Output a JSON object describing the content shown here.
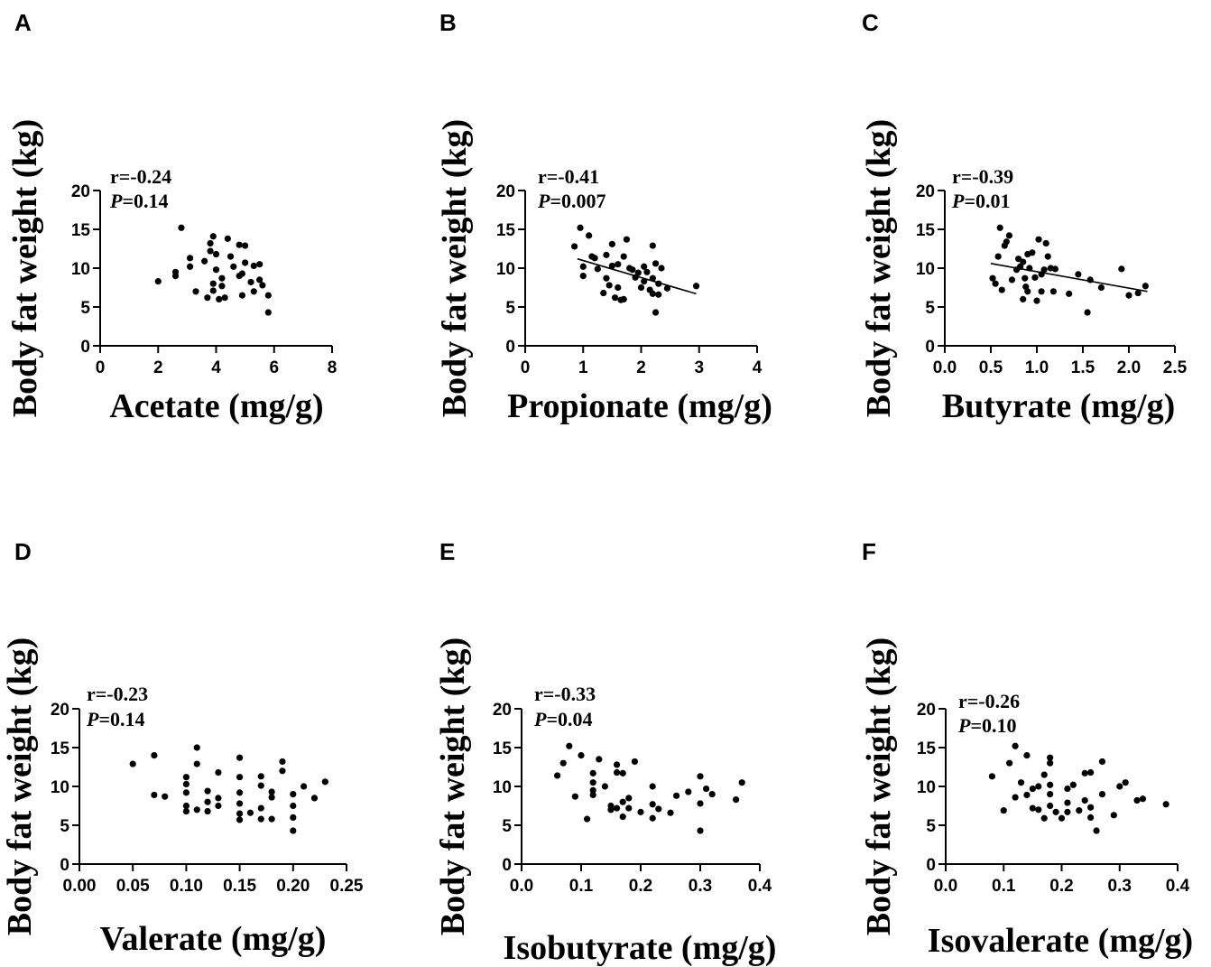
{
  "chart_data": [
    {
      "id": "A",
      "type": "scatter",
      "panel_label": "A",
      "title": "",
      "xlabel": "Acetate (mg/g)",
      "ylabel": "Body fat weight (kg)",
      "xlim": [
        0,
        8
      ],
      "ylim": [
        0,
        20
      ],
      "xticks": [
        0,
        2,
        4,
        6,
        8
      ],
      "xtick_labels": [
        "0",
        "2",
        "4",
        "6",
        "8"
      ],
      "yticks": [
        0,
        5,
        10,
        15,
        20
      ],
      "ytick_labels": [
        "0",
        "5",
        "10",
        "15",
        "20"
      ],
      "stats": {
        "r": "r=-0.24",
        "p_prefix": "P",
        "p_value": "=0.14"
      },
      "fit_line": null,
      "points": [
        [
          2.0,
          8.3
        ],
        [
          2.6,
          9.0
        ],
        [
          2.6,
          9.5
        ],
        [
          2.8,
          15.2
        ],
        [
          3.1,
          11.3
        ],
        [
          3.1,
          10.2
        ],
        [
          3.3,
          7.0
        ],
        [
          3.6,
          10.9
        ],
        [
          3.7,
          6.2
        ],
        [
          3.8,
          13.2
        ],
        [
          3.8,
          12.2
        ],
        [
          3.9,
          14.1
        ],
        [
          3.9,
          8.0
        ],
        [
          3.9,
          7.1
        ],
        [
          4.0,
          11.8
        ],
        [
          4.0,
          9.8
        ],
        [
          4.1,
          6.0
        ],
        [
          4.2,
          8.7
        ],
        [
          4.3,
          6.2
        ],
        [
          4.2,
          7.7
        ],
        [
          4.4,
          13.8
        ],
        [
          4.5,
          11.5
        ],
        [
          4.6,
          10.2
        ],
        [
          4.8,
          9.0
        ],
        [
          4.8,
          13.0
        ],
        [
          4.9,
          9.3
        ],
        [
          4.9,
          6.5
        ],
        [
          5.0,
          12.9
        ],
        [
          5.0,
          10.7
        ],
        [
          5.2,
          8.2
        ],
        [
          5.3,
          7.0
        ],
        [
          5.3,
          10.3
        ],
        [
          5.5,
          10.5
        ],
        [
          5.5,
          8.5
        ],
        [
          5.6,
          7.8
        ],
        [
          5.8,
          6.5
        ],
        [
          5.8,
          4.3
        ]
      ]
    },
    {
      "id": "B",
      "type": "scatter",
      "panel_label": "B",
      "title": "",
      "xlabel": "Propionate (mg/g)",
      "ylabel": "Body fat weight (kg)",
      "xlim": [
        0,
        4
      ],
      "ylim": [
        0,
        20
      ],
      "xticks": [
        0,
        1,
        2,
        3,
        4
      ],
      "xtick_labels": [
        "0",
        "1",
        "2",
        "3",
        "4"
      ],
      "yticks": [
        0,
        5,
        10,
        15,
        20
      ],
      "ytick_labels": [
        "0",
        "5",
        "10",
        "15",
        "20"
      ],
      "stats": {
        "r": "r=-0.41",
        "p_prefix": "P",
        "p_value": "=0.007"
      },
      "fit_line": [
        [
          0.9,
          11.2
        ],
        [
          2.95,
          6.7
        ]
      ],
      "points": [
        [
          0.85,
          12.8
        ],
        [
          0.95,
          15.2
        ],
        [
          1.0,
          10.2
        ],
        [
          1.0,
          9.0
        ],
        [
          1.1,
          14.2
        ],
        [
          1.15,
          11.5
        ],
        [
          1.2,
          11.3
        ],
        [
          1.25,
          9.9
        ],
        [
          1.35,
          6.8
        ],
        [
          1.4,
          8.7
        ],
        [
          1.4,
          11.7
        ],
        [
          1.45,
          7.8
        ],
        [
          1.5,
          13.1
        ],
        [
          1.5,
          10.3
        ],
        [
          1.55,
          6.2
        ],
        [
          1.6,
          7.5
        ],
        [
          1.6,
          10.5
        ],
        [
          1.65,
          5.9
        ],
        [
          1.7,
          11.5
        ],
        [
          1.7,
          6.0
        ],
        [
          1.75,
          13.7
        ],
        [
          1.8,
          10.0
        ],
        [
          1.85,
          9.8
        ],
        [
          1.9,
          8.8
        ],
        [
          1.95,
          9.4
        ],
        [
          2.0,
          7.5
        ],
        [
          2.05,
          10.2
        ],
        [
          2.05,
          8.3
        ],
        [
          2.1,
          9.5
        ],
        [
          2.15,
          7.2
        ],
        [
          2.2,
          12.9
        ],
        [
          2.2,
          8.7
        ],
        [
          2.2,
          6.7
        ],
        [
          2.25,
          4.3
        ],
        [
          2.25,
          10.6
        ],
        [
          2.3,
          8.0
        ],
        [
          2.3,
          6.6
        ],
        [
          2.35,
          10.0
        ],
        [
          2.45,
          7.4
        ],
        [
          2.95,
          7.7
        ]
      ]
    },
    {
      "id": "C",
      "type": "scatter",
      "panel_label": "C",
      "title": "",
      "xlabel": "Butyrate  (mg/g)",
      "ylabel": "Body fat weight (kg)",
      "xlim": [
        0,
        2.5
      ],
      "ylim": [
        0,
        20
      ],
      "xticks": [
        0,
        0.5,
        1.0,
        1.5,
        2.0,
        2.5
      ],
      "xtick_labels": [
        "0.0",
        "0.5",
        "1.0",
        "1.5",
        "2.0",
        "2.5"
      ],
      "yticks": [
        0,
        5,
        10,
        15,
        20
      ],
      "ytick_labels": [
        "0",
        "5",
        "10",
        "15",
        "20"
      ],
      "stats": {
        "r": "r=-0.39",
        "p_prefix": "P",
        "p_value": "=0.01"
      },
      "fit_line": [
        [
          0.5,
          10.6
        ],
        [
          2.2,
          7.0
        ]
      ],
      "points": [
        [
          0.52,
          8.7
        ],
        [
          0.55,
          8.0
        ],
        [
          0.58,
          11.5
        ],
        [
          0.6,
          15.2
        ],
        [
          0.62,
          7.2
        ],
        [
          0.65,
          12.9
        ],
        [
          0.67,
          13.4
        ],
        [
          0.7,
          14.2
        ],
        [
          0.73,
          8.5
        ],
        [
          0.78,
          9.8
        ],
        [
          0.8,
          11.2
        ],
        [
          0.82,
          10.2
        ],
        [
          0.85,
          6.0
        ],
        [
          0.85,
          10.8
        ],
        [
          0.87,
          8.7
        ],
        [
          0.88,
          7.6
        ],
        [
          0.9,
          11.8
        ],
        [
          0.9,
          7.0
        ],
        [
          0.92,
          10.0
        ],
        [
          0.95,
          12.0
        ],
        [
          0.98,
          8.8
        ],
        [
          1.0,
          5.8
        ],
        [
          1.02,
          13.7
        ],
        [
          1.05,
          7.0
        ],
        [
          1.05,
          9.2
        ],
        [
          1.08,
          9.8
        ],
        [
          1.1,
          13.2
        ],
        [
          1.12,
          11.5
        ],
        [
          1.15,
          10.0
        ],
        [
          1.18,
          7.0
        ],
        [
          1.2,
          9.9
        ],
        [
          1.35,
          6.7
        ],
        [
          1.45,
          9.2
        ],
        [
          1.55,
          4.3
        ],
        [
          1.58,
          8.5
        ],
        [
          1.7,
          7.5
        ],
        [
          1.92,
          9.9
        ],
        [
          2.0,
          6.5
        ],
        [
          2.1,
          6.8
        ],
        [
          2.18,
          7.7
        ]
      ]
    },
    {
      "id": "D",
      "type": "scatter",
      "panel_label": "D",
      "title": "",
      "xlabel": "Valerate (mg/g)",
      "ylabel": "Body fat weight (kg)",
      "xlim": [
        0,
        0.25
      ],
      "ylim": [
        0,
        20
      ],
      "xticks": [
        0,
        0.05,
        0.1,
        0.15,
        0.2,
        0.25
      ],
      "xtick_labels": [
        "0.00",
        "0.05",
        "0.10",
        "0.15",
        "0.20",
        "0.25"
      ],
      "yticks": [
        0,
        5,
        10,
        15,
        20
      ],
      "ytick_labels": [
        "0",
        "5",
        "10",
        "15",
        "20"
      ],
      "stats": {
        "r": "r=-0.23",
        "p_prefix": "P",
        "p_value": "=0.14"
      },
      "fit_line": null,
      "points": [
        [
          0.05,
          12.9
        ],
        [
          0.07,
          14.0
        ],
        [
          0.07,
          8.9
        ],
        [
          0.08,
          8.7
        ],
        [
          0.1,
          11.2
        ],
        [
          0.1,
          10.3
        ],
        [
          0.1,
          9.2
        ],
        [
          0.1,
          7.5
        ],
        [
          0.1,
          6.8
        ],
        [
          0.11,
          15.0
        ],
        [
          0.11,
          12.9
        ],
        [
          0.11,
          7.0
        ],
        [
          0.12,
          9.4
        ],
        [
          0.12,
          8.0
        ],
        [
          0.12,
          6.8
        ],
        [
          0.13,
          11.8
        ],
        [
          0.13,
          8.5
        ],
        [
          0.13,
          7.5
        ],
        [
          0.15,
          13.7
        ],
        [
          0.15,
          11.2
        ],
        [
          0.15,
          9.2
        ],
        [
          0.15,
          7.8
        ],
        [
          0.15,
          6.5
        ],
        [
          0.15,
          5.7
        ],
        [
          0.16,
          6.6
        ],
        [
          0.17,
          11.3
        ],
        [
          0.17,
          10.1
        ],
        [
          0.17,
          7.2
        ],
        [
          0.17,
          5.8
        ],
        [
          0.18,
          9.3
        ],
        [
          0.18,
          8.6
        ],
        [
          0.18,
          5.8
        ],
        [
          0.19,
          13.2
        ],
        [
          0.19,
          12.0
        ],
        [
          0.2,
          9.0
        ],
        [
          0.2,
          7.5
        ],
        [
          0.2,
          6.0
        ],
        [
          0.2,
          4.3
        ],
        [
          0.21,
          10.0
        ],
        [
          0.22,
          8.5
        ],
        [
          0.23,
          10.6
        ]
      ]
    },
    {
      "id": "E",
      "type": "scatter",
      "panel_label": "E",
      "title": "",
      "xlabel": "Isobutyrate  (mg/g)",
      "ylabel": "Body fat weight (kg)",
      "xlim": [
        0,
        0.4
      ],
      "ylim": [
        0,
        20
      ],
      "xticks": [
        0,
        0.1,
        0.2,
        0.3,
        0.4
      ],
      "xtick_labels": [
        "0.0",
        "0.1",
        "0.2",
        "0.3",
        "0.4"
      ],
      "yticks": [
        0,
        5,
        10,
        15,
        20
      ],
      "ytick_labels": [
        "0",
        "5",
        "10",
        "15",
        "20"
      ],
      "stats": {
        "r": "r=-0.33",
        "p_prefix": "P",
        "p_value": "=0.04"
      },
      "fit_line": null,
      "points": [
        [
          0.06,
          11.4
        ],
        [
          0.07,
          13.0
        ],
        [
          0.08,
          15.2
        ],
        [
          0.09,
          8.7
        ],
        [
          0.1,
          14.0
        ],
        [
          0.11,
          5.8
        ],
        [
          0.12,
          11.7
        ],
        [
          0.12,
          10.5
        ],
        [
          0.12,
          9.5
        ],
        [
          0.12,
          8.9
        ],
        [
          0.13,
          13.5
        ],
        [
          0.14,
          10.0
        ],
        [
          0.15,
          7.5
        ],
        [
          0.15,
          7.0
        ],
        [
          0.16,
          12.8
        ],
        [
          0.16,
          11.8
        ],
        [
          0.16,
          7.2
        ],
        [
          0.17,
          11.7
        ],
        [
          0.17,
          8.0
        ],
        [
          0.17,
          6.1
        ],
        [
          0.18,
          8.5
        ],
        [
          0.18,
          7.2
        ],
        [
          0.19,
          13.2
        ],
        [
          0.2,
          6.7
        ],
        [
          0.22,
          10.0
        ],
        [
          0.22,
          7.7
        ],
        [
          0.22,
          5.9
        ],
        [
          0.23,
          7.1
        ],
        [
          0.25,
          6.6
        ],
        [
          0.26,
          8.8
        ],
        [
          0.28,
          9.3
        ],
        [
          0.3,
          11.3
        ],
        [
          0.3,
          7.8
        ],
        [
          0.3,
          4.3
        ],
        [
          0.31,
          9.7
        ],
        [
          0.32,
          9.0
        ],
        [
          0.36,
          8.3
        ],
        [
          0.37,
          10.5
        ]
      ]
    },
    {
      "id": "F",
      "type": "scatter",
      "panel_label": "F",
      "title": "",
      "xlabel": "Isovalerate (mg/g)",
      "ylabel": "Body fat weight (kg)",
      "xlim": [
        0,
        0.4
      ],
      "ylim": [
        0,
        20
      ],
      "xticks": [
        0,
        0.1,
        0.2,
        0.3,
        0.4
      ],
      "xtick_labels": [
        "0.0",
        "0.1",
        "0.2",
        "0.3",
        "0.4"
      ],
      "yticks": [
        0,
        5,
        10,
        15,
        20
      ],
      "ytick_labels": [
        "0",
        "5",
        "10",
        "15",
        "20"
      ],
      "stats": {
        "r": "r=-0.26",
        "p_prefix": "P",
        "p_value": "=0.10"
      },
      "fit_line": null,
      "points": [
        [
          0.08,
          11.3
        ],
        [
          0.1,
          6.9
        ],
        [
          0.11,
          13.0
        ],
        [
          0.12,
          15.2
        ],
        [
          0.12,
          8.6
        ],
        [
          0.13,
          10.5
        ],
        [
          0.14,
          14.0
        ],
        [
          0.14,
          8.9
        ],
        [
          0.15,
          9.7
        ],
        [
          0.15,
          7.2
        ],
        [
          0.16,
          10.0
        ],
        [
          0.16,
          7.0
        ],
        [
          0.17,
          11.5
        ],
        [
          0.17,
          5.9
        ],
        [
          0.18,
          13.7
        ],
        [
          0.18,
          13.0
        ],
        [
          0.18,
          10.2
        ],
        [
          0.18,
          9.0
        ],
        [
          0.18,
          7.5
        ],
        [
          0.19,
          6.7
        ],
        [
          0.2,
          5.9
        ],
        [
          0.21,
          9.7
        ],
        [
          0.21,
          7.9
        ],
        [
          0.21,
          6.7
        ],
        [
          0.22,
          10.2
        ],
        [
          0.23,
          6.9
        ],
        [
          0.24,
          11.7
        ],
        [
          0.24,
          8.2
        ],
        [
          0.25,
          11.8
        ],
        [
          0.25,
          7.3
        ],
        [
          0.25,
          6.0
        ],
        [
          0.26,
          4.3
        ],
        [
          0.27,
          13.2
        ],
        [
          0.27,
          9.0
        ],
        [
          0.29,
          6.3
        ],
        [
          0.3,
          10.0
        ],
        [
          0.31,
          10.5
        ],
        [
          0.33,
          8.2
        ],
        [
          0.34,
          8.4
        ],
        [
          0.38,
          7.7
        ]
      ]
    }
  ]
}
